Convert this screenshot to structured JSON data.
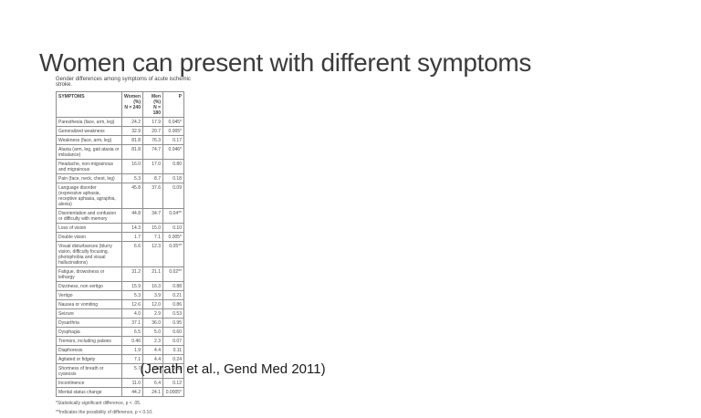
{
  "slide": {
    "title": "Women can present with different symptoms",
    "citation": "(Jerath et al., Gend Med 2011)"
  },
  "figure": {
    "caption": "Gender differences among symptoms of acute ischemic stroke.",
    "columns": [
      "SYMPTOMS",
      "Women\n(%)\nN = 240",
      "Men\n(%)\nN = 180",
      "P"
    ],
    "rows": [
      {
        "symptom": "Paresthesia (face, arm, leg)",
        "women": "24.2",
        "men": "17.9",
        "p": "0.045*"
      },
      {
        "symptom": "Generalized weakness",
        "women": "32.9",
        "men": "20.7",
        "p": "0.005*"
      },
      {
        "symptom": "Weakness (face, arm, leg)",
        "women": "81.8",
        "men": "76.3",
        "p": "0.17"
      },
      {
        "symptom": "Ataxia (arm, leg, gait ataxia or imbalance)",
        "women": "81.8",
        "men": "74.7",
        "p": "0.046*"
      },
      {
        "symptom": "Headache, non-migrainous and migrainous",
        "women": "16.0",
        "men": "17.0",
        "p": "0.80"
      },
      {
        "symptom": "Pain (face, neck, chest, leg)",
        "women": "5.3",
        "men": "8.7",
        "p": "0.18"
      },
      {
        "symptom": "Language disorder (expressive aphasia, receptive aphasia, agraphia, alexia)",
        "women": "45.8",
        "men": "37.6",
        "p": "0.09"
      },
      {
        "symptom": "Disorientation and confusion or difficulty with memory",
        "women": "44.8",
        "men": "34.7",
        "p": "0.04**"
      },
      {
        "symptom": "Loss of vision",
        "women": "14.3",
        "men": "15.0",
        "p": "0.10"
      },
      {
        "symptom": "Double vision",
        "women": "1.7",
        "men": "7.1",
        "p": "0.005*"
      },
      {
        "symptom": "Visual disturbances (blurry vision, difficulty focusing, photophobia and visual hallucinations)",
        "women": "6.6",
        "men": "12.3",
        "p": "0.05**"
      },
      {
        "symptom": "Fatigue, drowsiness or lethargy",
        "women": "31.2",
        "men": "21.1",
        "p": "0.02**"
      },
      {
        "symptom": "Dizziness, non vertigo",
        "women": "15.9",
        "men": "16.3",
        "p": "0.88"
      },
      {
        "symptom": "Vertigo",
        "women": "5.3",
        "men": "3.9",
        "p": "0.21"
      },
      {
        "symptom": "Nausea or vomiting",
        "women": "12.6",
        "men": "12.0",
        "p": "0.86"
      },
      {
        "symptom": "Seizure",
        "women": "4.0",
        "men": "2.9",
        "p": "0.53"
      },
      {
        "symptom": "Dysarthria",
        "women": "37.1",
        "men": "36.0",
        "p": "0.95"
      },
      {
        "symptom": "Dysphagia",
        "women": "6.5",
        "men": "5.0",
        "p": "0.60"
      },
      {
        "symptom": "Tremors, including palsies",
        "women": "0.46",
        "men": "2.3",
        "p": "0.07"
      },
      {
        "symptom": "Diaphoresis",
        "women": "1.9",
        "men": "4.4",
        "p": "0.11"
      },
      {
        "symptom": "Agitated or fidgety",
        "women": "7.1",
        "men": "4.4",
        "p": "0.24"
      },
      {
        "symptom": "Shortness of breath or cyanosis",
        "women": "5.7",
        "men": "5.0",
        "p": "0.32"
      },
      {
        "symptom": "Incontinence",
        "women": "11.0",
        "men": "6.4",
        "p": "0.12"
      },
      {
        "symptom": "Mental status change",
        "women": "44.2",
        "men": "24.1",
        "p": "0.0005*"
      }
    ],
    "footnotes": [
      "*Statistically significant difference, p < .05.",
      "**Indicates the possibility of difference, p < 0.10."
    ]
  }
}
